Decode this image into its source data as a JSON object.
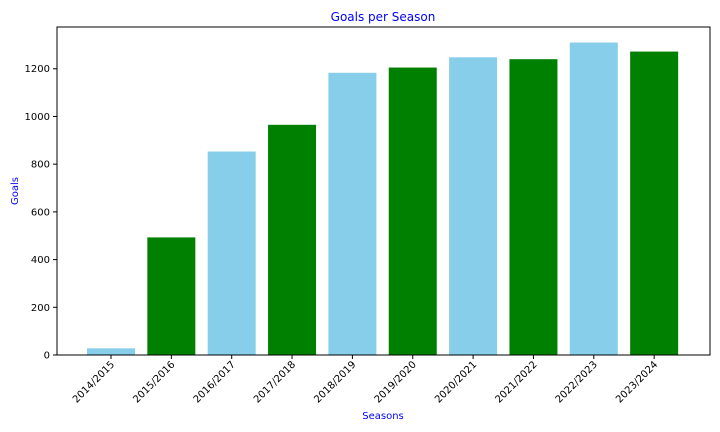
{
  "chart_data": {
    "type": "bar",
    "title": "Goals per Season",
    "xlabel": "Seasons",
    "ylabel": "Goals",
    "categories": [
      "2014/2015",
      "2015/2016",
      "2016/2017",
      "2017/2018",
      "2018/2019",
      "2019/2020",
      "2020/2021",
      "2021/2022",
      "2022/2023",
      "2023/2024"
    ],
    "values": [
      28,
      493,
      853,
      965,
      1183,
      1205,
      1248,
      1240,
      1310,
      1272
    ],
    "ylim": [
      0,
      1375
    ],
    "yticks": [
      "0",
      "200",
      "400",
      "600",
      "800",
      "1000",
      "1200"
    ],
    "bar_colors": [
      "#87ceeb",
      "#008000",
      "#87ceeb",
      "#008000",
      "#87ceeb",
      "#008000",
      "#87ceeb",
      "#008000",
      "#87ceeb",
      "#008000"
    ],
    "label_color": "#0000ff",
    "grid": false,
    "legend": "none"
  }
}
